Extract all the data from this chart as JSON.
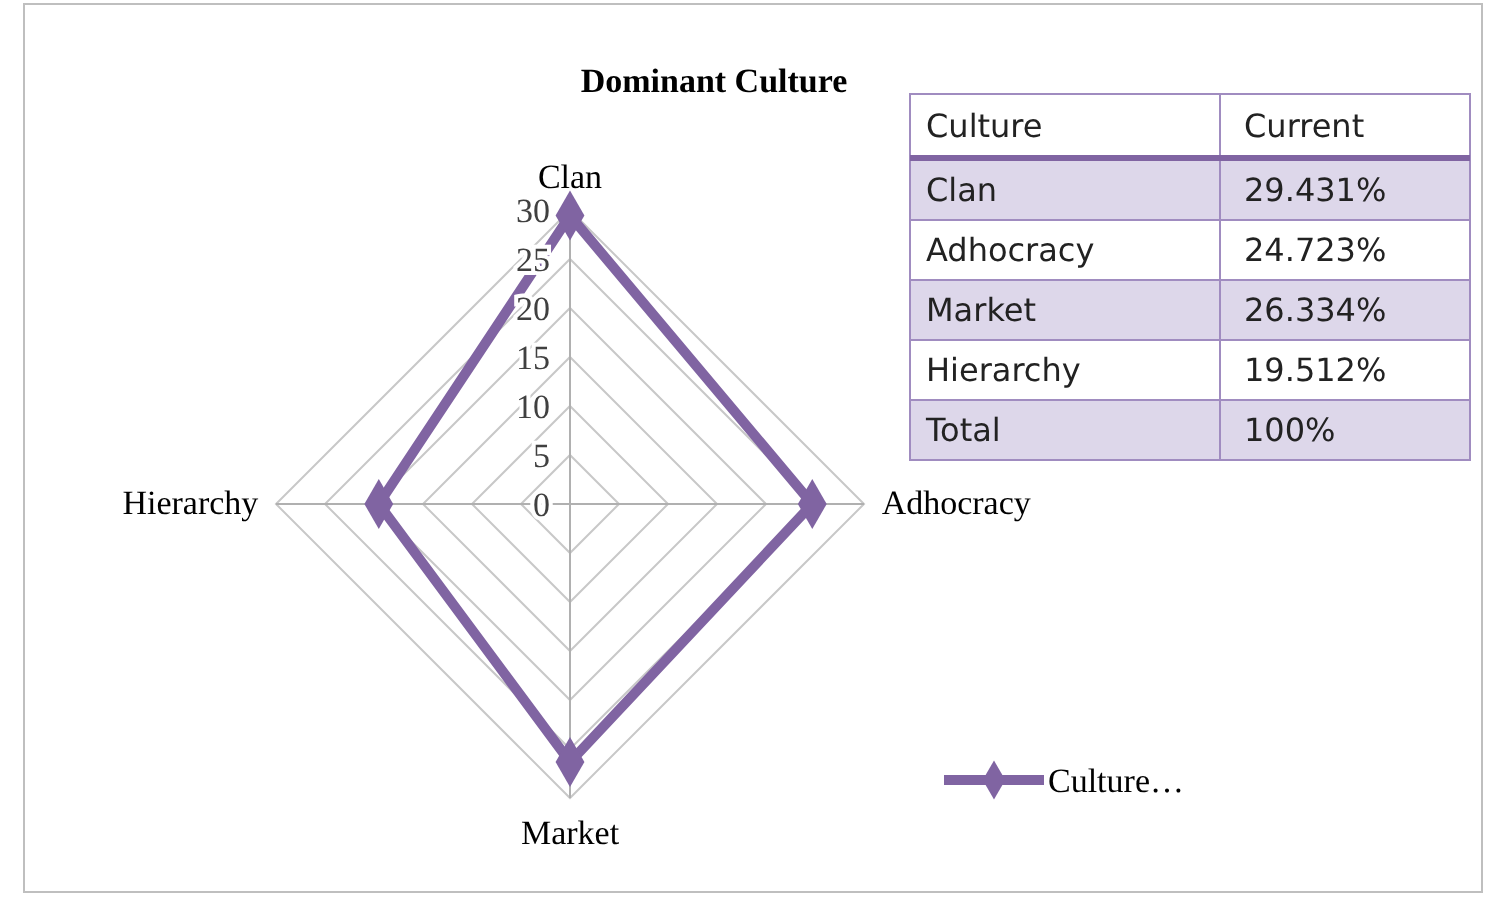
{
  "chart_data": {
    "type": "radar",
    "title": "Dominant Culture",
    "categories": [
      "Clan",
      "Adhocracy",
      "Market",
      "Hierarchy"
    ],
    "series": [
      {
        "name": "Culture…",
        "color": "#8064a2",
        "values": [
          29.431,
          24.723,
          26.334,
          19.512
        ]
      }
    ],
    "ylim": [
      0,
      30
    ],
    "yticks": [
      0,
      5,
      10,
      15,
      20,
      25,
      30
    ],
    "grid": true,
    "legend": "bottom right",
    "marker": "diamond",
    "annotations": [
      "Culture",
      "Current",
      "29.431%",
      "24.723%",
      "26.334%",
      "19.512%",
      "Total",
      "100%"
    ]
  }
}
